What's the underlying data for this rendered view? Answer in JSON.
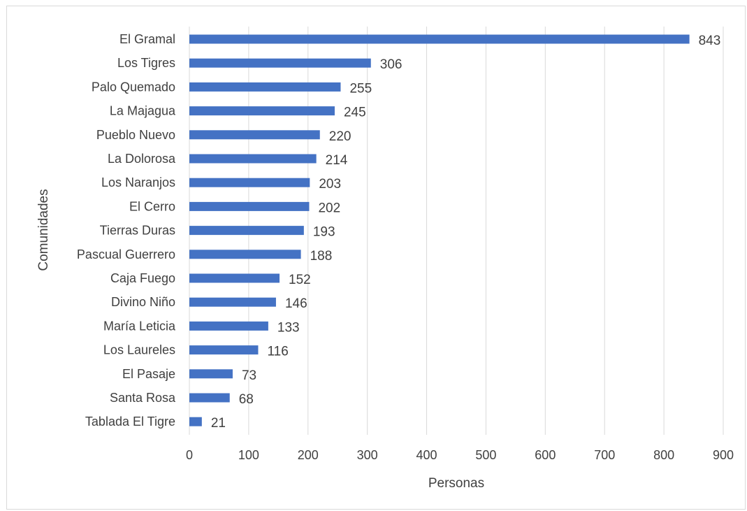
{
  "chart_data": {
    "type": "bar",
    "orientation": "horizontal",
    "categories": [
      "El Gramal",
      "Los Tigres",
      "Palo Quemado",
      "La Majagua",
      "Pueblo Nuevo",
      "La Dolorosa",
      "Los Naranjos",
      "El Cerro",
      "Tierras Duras",
      "Pascual Guerrero",
      "Caja Fuego",
      "Divino Niño",
      "María Leticia",
      "Los Laureles",
      "El Pasaje",
      "Santa Rosa",
      "Tablada El Tigre"
    ],
    "values": [
      843,
      306,
      255,
      245,
      220,
      214,
      203,
      202,
      193,
      188,
      152,
      146,
      133,
      116,
      73,
      68,
      21
    ],
    "title": "",
    "xlabel": "Personas",
    "ylabel": "Comunidades",
    "xlim": [
      0,
      900
    ],
    "xticks": [
      "0",
      "100",
      "200",
      "300",
      "400",
      "500",
      "600",
      "700",
      "800",
      "900"
    ],
    "grid": "vertical",
    "bar_color": "#4472c4",
    "gridline_color": "#d9d9d9",
    "data_labels": true
  }
}
